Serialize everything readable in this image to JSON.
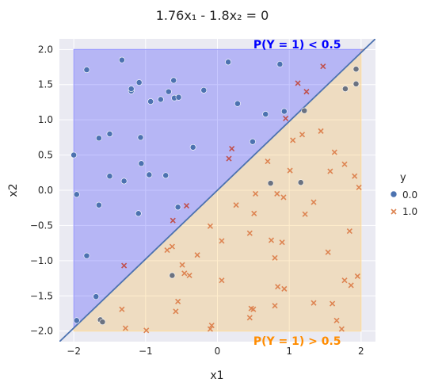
{
  "chart_data": {
    "type": "scatter",
    "title": "1.76x₁ - 1.8x₂ = 0",
    "xlabel": "x1",
    "ylabel": "x2",
    "xlim": [
      -2.2,
      2.2
    ],
    "ylim": [
      -2.15,
      2.15
    ],
    "xticks": [
      -2,
      -1,
      0,
      1,
      2
    ],
    "yticks": [
      -2.0,
      -1.5,
      -1.0,
      -0.5,
      0.0,
      0.5,
      1.0,
      1.5,
      2.0
    ],
    "xtick_labels": [
      "−2",
      "−1",
      "0",
      "1",
      "2"
    ],
    "ytick_labels": [
      "−2.0",
      "−1.5",
      "−1.0",
      "−0.5",
      "0.0",
      "0.5",
      "1.0",
      "1.5",
      "2.0"
    ],
    "grid": true,
    "legend": {
      "title": "y",
      "placement": "outside-right",
      "entries": [
        "0.0",
        "1.0"
      ]
    },
    "decision_boundary": {
      "a": 1.76,
      "b": -1.8
    },
    "regions": [
      {
        "label": "P(Y = 1) < 0.5",
        "color": "#0000ff"
      },
      {
        "label": "P(Y = 1) > 0.5",
        "color": "#ff8c00"
      }
    ],
    "colors": {
      "class0": "#4c72b0",
      "class1": "#dd8452",
      "line": "#4c72b0",
      "region0": "#0000ff",
      "region1": "#ffa500"
    },
    "series": [
      {
        "name": "0.0",
        "marker": "circle",
        "x": [
          -1.33,
          -1.82,
          -1.2,
          -1.2,
          -1.09,
          -1.07,
          -0.61,
          -0.79,
          -0.68,
          -0.6,
          -0.93,
          -0.54,
          -0.19,
          0.15,
          0.87,
          0.93,
          0.28,
          -1.65,
          -1.5,
          -1.06,
          -0.34,
          0.67,
          0.49,
          -1.5,
          -1.3,
          -2.0,
          -1.96,
          -1.65,
          -0.95,
          -0.72,
          -1.1,
          -1.82,
          -0.63,
          -0.55,
          -1.69,
          -1.63,
          -1.6,
          -1.96,
          0.74,
          1.16,
          1.21,
          1.93,
          1.93,
          1.78
        ],
        "y": [
          1.85,
          1.71,
          1.41,
          1.44,
          1.53,
          0.75,
          1.56,
          1.29,
          1.4,
          1.31,
          1.26,
          1.32,
          1.42,
          1.82,
          1.79,
          1.12,
          1.23,
          0.74,
          0.8,
          0.38,
          0.61,
          1.08,
          0.69,
          0.2,
          0.13,
          0.5,
          -0.06,
          -0.21,
          0.22,
          0.21,
          -0.33,
          -0.93,
          -1.21,
          -0.24,
          -1.51,
          -1.84,
          -1.87,
          -1.85,
          0.1,
          0.11,
          1.13,
          1.72,
          1.51,
          1.44
        ]
      },
      {
        "name": "1.0",
        "marker": "x",
        "x": [
          1.47,
          0.95,
          1.24,
          1.12,
          1.18,
          1.05,
          0.2,
          0.16,
          0.7,
          1.01,
          1.34,
          1.57,
          1.63,
          1.77,
          1.91,
          1.97,
          1.54,
          1.84,
          1.44,
          1.22,
          0.92,
          0.83,
          0.53,
          0.51,
          0.45,
          0.26,
          0.06,
          -0.1,
          -0.63,
          -0.43,
          -0.62,
          -0.28,
          0.06,
          -0.46,
          -0.49,
          -1.3,
          -0.7,
          -0.08,
          0.47,
          0.75,
          0.8,
          0.9,
          0.84,
          0.93,
          1.6,
          1.66,
          0.8,
          1.73,
          1.77,
          1.86,
          1.95,
          1.34,
          0.5,
          0.45,
          -0.39,
          -0.58,
          -0.55,
          -1.33,
          -0.99,
          -1.28,
          -0.1
        ],
        "y": [
          1.76,
          1.02,
          1.4,
          1.52,
          0.79,
          0.71,
          0.59,
          0.45,
          0.41,
          0.28,
          -0.17,
          0.27,
          0.54,
          0.37,
          0.2,
          0.04,
          -0.88,
          -0.58,
          0.84,
          -0.34,
          -0.1,
          -0.05,
          -0.05,
          -0.33,
          -0.61,
          -0.21,
          -0.72,
          -0.51,
          -0.8,
          -0.22,
          -0.43,
          -0.92,
          -1.28,
          -1.18,
          -1.06,
          -1.07,
          -0.85,
          -1.92,
          -1.68,
          -0.71,
          -0.96,
          -0.74,
          -1.37,
          -1.4,
          -1.61,
          -1.85,
          -1.64,
          -1.97,
          -1.28,
          -1.35,
          -1.22,
          -1.6,
          -1.69,
          -1.81,
          -1.21,
          -1.72,
          -1.58,
          -1.69,
          -1.99,
          -1.96,
          -1.97
        ]
      }
    ]
  }
}
